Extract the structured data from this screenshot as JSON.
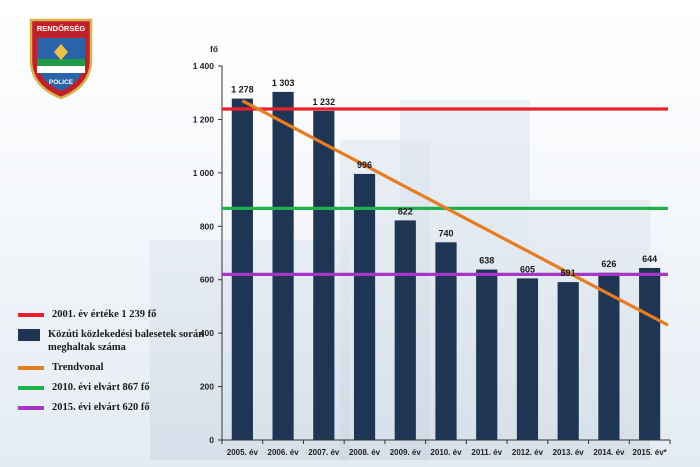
{
  "badge": {
    "top_text": "RENDŐRSÉG",
    "bottom_text": "POLICE"
  },
  "colors": {
    "bar": "#1e3553",
    "reference_2001": "#e8202a",
    "trend": "#e87c22",
    "target_2010": "#1fb14a",
    "target_2015": "#a637c6"
  },
  "legend": {
    "reference_2001": "2001. év értéke 1 239 fő",
    "deaths": "Közúti közlekedési balesetek során meghaltak száma",
    "trend": "Trendvonal",
    "target_2010": "2010. évi elvárt   867 fő",
    "target_2015": "2015. évi elvárt   620 fő"
  },
  "chart_data": {
    "type": "bar",
    "title": "",
    "ylabel": "fő",
    "xlabel": "",
    "categories": [
      "2005. év",
      "2006. év",
      "2007. év",
      "2008. év",
      "2009. év",
      "2010. év",
      "2011. év",
      "2012. év",
      "2013. év",
      "2014. év",
      "2015. év*"
    ],
    "series": [
      {
        "name": "Közúti közlekedési balesetek során meghaltak száma",
        "values": [
          1278,
          1303,
          1232,
          996,
          822,
          740,
          638,
          605,
          591,
          626,
          644
        ]
      }
    ],
    "value_labels": [
      "1 278",
      "1 303",
      "1 232",
      "996",
      "822",
      "740",
      "638",
      "605",
      "591",
      "626",
      "644"
    ],
    "ylim": [
      0,
      1400
    ],
    "yticks": [
      0,
      200,
      400,
      600,
      800,
      1000,
      1200,
      1400
    ],
    "ytick_labels": [
      "0",
      "200",
      "400",
      "600",
      "800",
      "1 000",
      "1 200",
      "1 400"
    ],
    "reference_lines": [
      {
        "name": "2001. év értéke",
        "value": 1239,
        "color_key": "reference_2001"
      },
      {
        "name": "2010. évi elvárt",
        "value": 867,
        "color_key": "target_2010"
      },
      {
        "name": "2015. évi elvárt",
        "value": 620,
        "color_key": "target_2015"
      }
    ],
    "trend_line": {
      "name": "Trendvonal",
      "start_value": 1270,
      "end_value": 430,
      "color_key": "trend"
    }
  }
}
